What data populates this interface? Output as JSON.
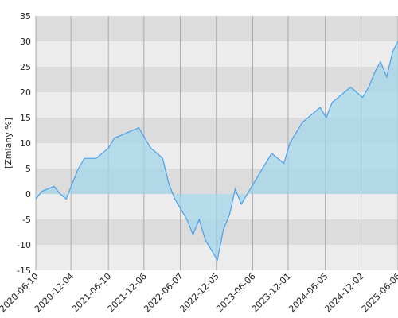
{
  "chart_data": {
    "type": "area",
    "y_label": "[Zmiany %]",
    "color": "#4a9fe8",
    "fill": "#9fd6ec",
    "x": [
      "2020-06-10",
      "2020-07-10",
      "2020-08-10",
      "2020-09-10",
      "2020-10-10",
      "2020-11-10",
      "2020-12-10",
      "2021-01-10",
      "2021-02-10",
      "2021-03-10",
      "2021-04-10",
      "2021-05-10",
      "2021-06-10",
      "2021-07-10",
      "2021-08-10",
      "2021-09-10",
      "2021-10-10",
      "2021-11-10",
      "2021-12-10",
      "2022-01-10",
      "2022-02-10",
      "2022-03-10",
      "2022-04-10",
      "2022-05-10",
      "2022-06-10",
      "2022-07-10",
      "2022-08-10",
      "2022-09-10",
      "2022-10-10",
      "2022-11-10",
      "2022-12-10",
      "2023-01-10",
      "2023-02-10",
      "2023-03-10",
      "2023-04-10",
      "2023-05-10",
      "2023-06-10",
      "2023-07-10",
      "2023-08-10",
      "2023-09-10",
      "2023-10-10",
      "2023-11-10",
      "2023-12-10",
      "2024-01-10",
      "2024-02-10",
      "2024-03-10",
      "2024-04-10",
      "2024-05-10",
      "2024-06-10",
      "2024-07-10",
      "2024-08-10",
      "2024-09-10",
      "2024-10-10",
      "2024-11-10",
      "2024-12-10",
      "2025-01-10",
      "2025-02-10",
      "2025-03-10",
      "2025-04-10",
      "2025-05-10",
      "2025-06-06"
    ],
    "values": [
      -1,
      0.5,
      1,
      1.5,
      0,
      -1,
      2,
      5,
      7,
      7,
      7,
      8,
      9,
      11,
      11.5,
      12,
      12.5,
      13,
      11,
      9,
      8,
      7,
      2,
      -1,
      -3,
      -5,
      -8,
      -5,
      -9,
      -11,
      -13,
      -7,
      -4,
      1,
      -2,
      0,
      2,
      4,
      6,
      8,
      7,
      6,
      10,
      12,
      14,
      15,
      16,
      17,
      15,
      18,
      19,
      20,
      21,
      20,
      19,
      21,
      24,
      26,
      23,
      28,
      30
    ],
    "xlim": [
      "2020-06-10",
      "2025-06-06"
    ],
    "xticks": [
      "2020-06-10",
      "2020-12-04",
      "2021-06-10",
      "2021-12-06",
      "2022-06-07",
      "2022-12-05",
      "2023-06-06",
      "2023-12-01",
      "2024-06-05",
      "2024-12-02",
      "2025-06-06"
    ],
    "ylim": [
      -15,
      35
    ],
    "yticks": [
      -15,
      -10,
      -5,
      0,
      5,
      10,
      15,
      20,
      25,
      30,
      35
    ],
    "grid": true
  }
}
